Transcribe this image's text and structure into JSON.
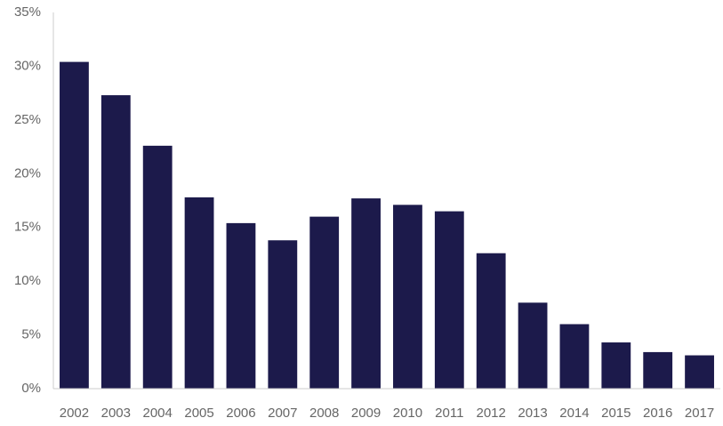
{
  "chart_data": {
    "type": "bar",
    "categories": [
      "2002",
      "2003",
      "2004",
      "2005",
      "2006",
      "2007",
      "2008",
      "2009",
      "2010",
      "2011",
      "2012",
      "2013",
      "2014",
      "2015",
      "2016",
      "2017"
    ],
    "values": [
      30.4,
      27.3,
      22.6,
      17.8,
      15.4,
      13.8,
      16.0,
      17.7,
      17.1,
      16.5,
      12.6,
      8.0,
      6.0,
      4.3,
      3.4,
      3.1
    ],
    "color": "#1c1a4b",
    "ylim": [
      0,
      35
    ],
    "yticks": [
      {
        "value": 0,
        "label": "0%"
      },
      {
        "value": 5,
        "label": "5%"
      },
      {
        "value": 10,
        "label": "10%"
      },
      {
        "value": 15,
        "label": "15%"
      },
      {
        "value": 20,
        "label": "20%"
      },
      {
        "value": 25,
        "label": "25%"
      },
      {
        "value": 30,
        "label": "30%"
      },
      {
        "value": 35,
        "label": "35%"
      }
    ],
    "grid": false
  }
}
